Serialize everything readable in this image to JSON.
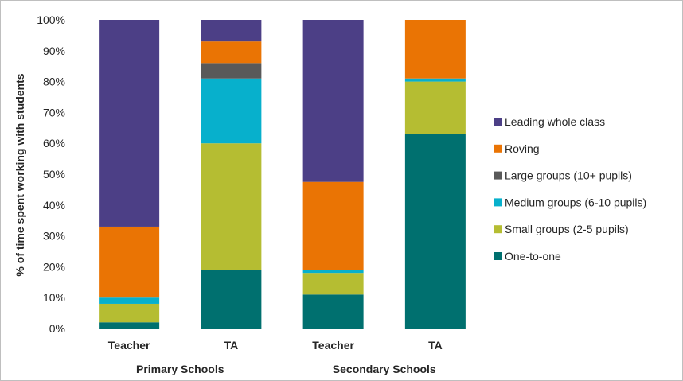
{
  "chart_data": {
    "type": "bar",
    "stacked": true,
    "title": "",
    "ylabel": "% of time spent working with students",
    "xlabel": "",
    "ylim": [
      0,
      100
    ],
    "yticks": [
      "0%",
      "10%",
      "20%",
      "30%",
      "40%",
      "50%",
      "60%",
      "70%",
      "80%",
      "90%",
      "100%"
    ],
    "categories": [
      "Teacher",
      "TA",
      "Teacher",
      "TA"
    ],
    "groups": [
      {
        "label": "Primary Schools",
        "categories": [
          0,
          1
        ]
      },
      {
        "label": "Secondary Schools",
        "categories": [
          2,
          3
        ]
      }
    ],
    "legend_position": "right",
    "series": [
      {
        "name": "One-to-one",
        "color": "#00706F",
        "values": [
          2,
          19,
          11,
          63
        ]
      },
      {
        "name": "Small groups (2-5 pupils)",
        "color": "#B5BD32",
        "values": [
          6,
          41,
          7,
          17
        ]
      },
      {
        "name": "Medium groups (6-10 pupils)",
        "color": "#07B0CC",
        "values": [
          2,
          21,
          1,
          1
        ]
      },
      {
        "name": "Large groups (10+ pupils)",
        "color": "#595959",
        "values": [
          0,
          5,
          0,
          0
        ]
      },
      {
        "name": "Roving",
        "color": "#EA7404",
        "values": [
          23,
          7,
          28.5,
          19
        ]
      },
      {
        "name": "Leading whole class",
        "color": "#4C3F86",
        "values": [
          67,
          7,
          52.5,
          0
        ]
      }
    ]
  }
}
